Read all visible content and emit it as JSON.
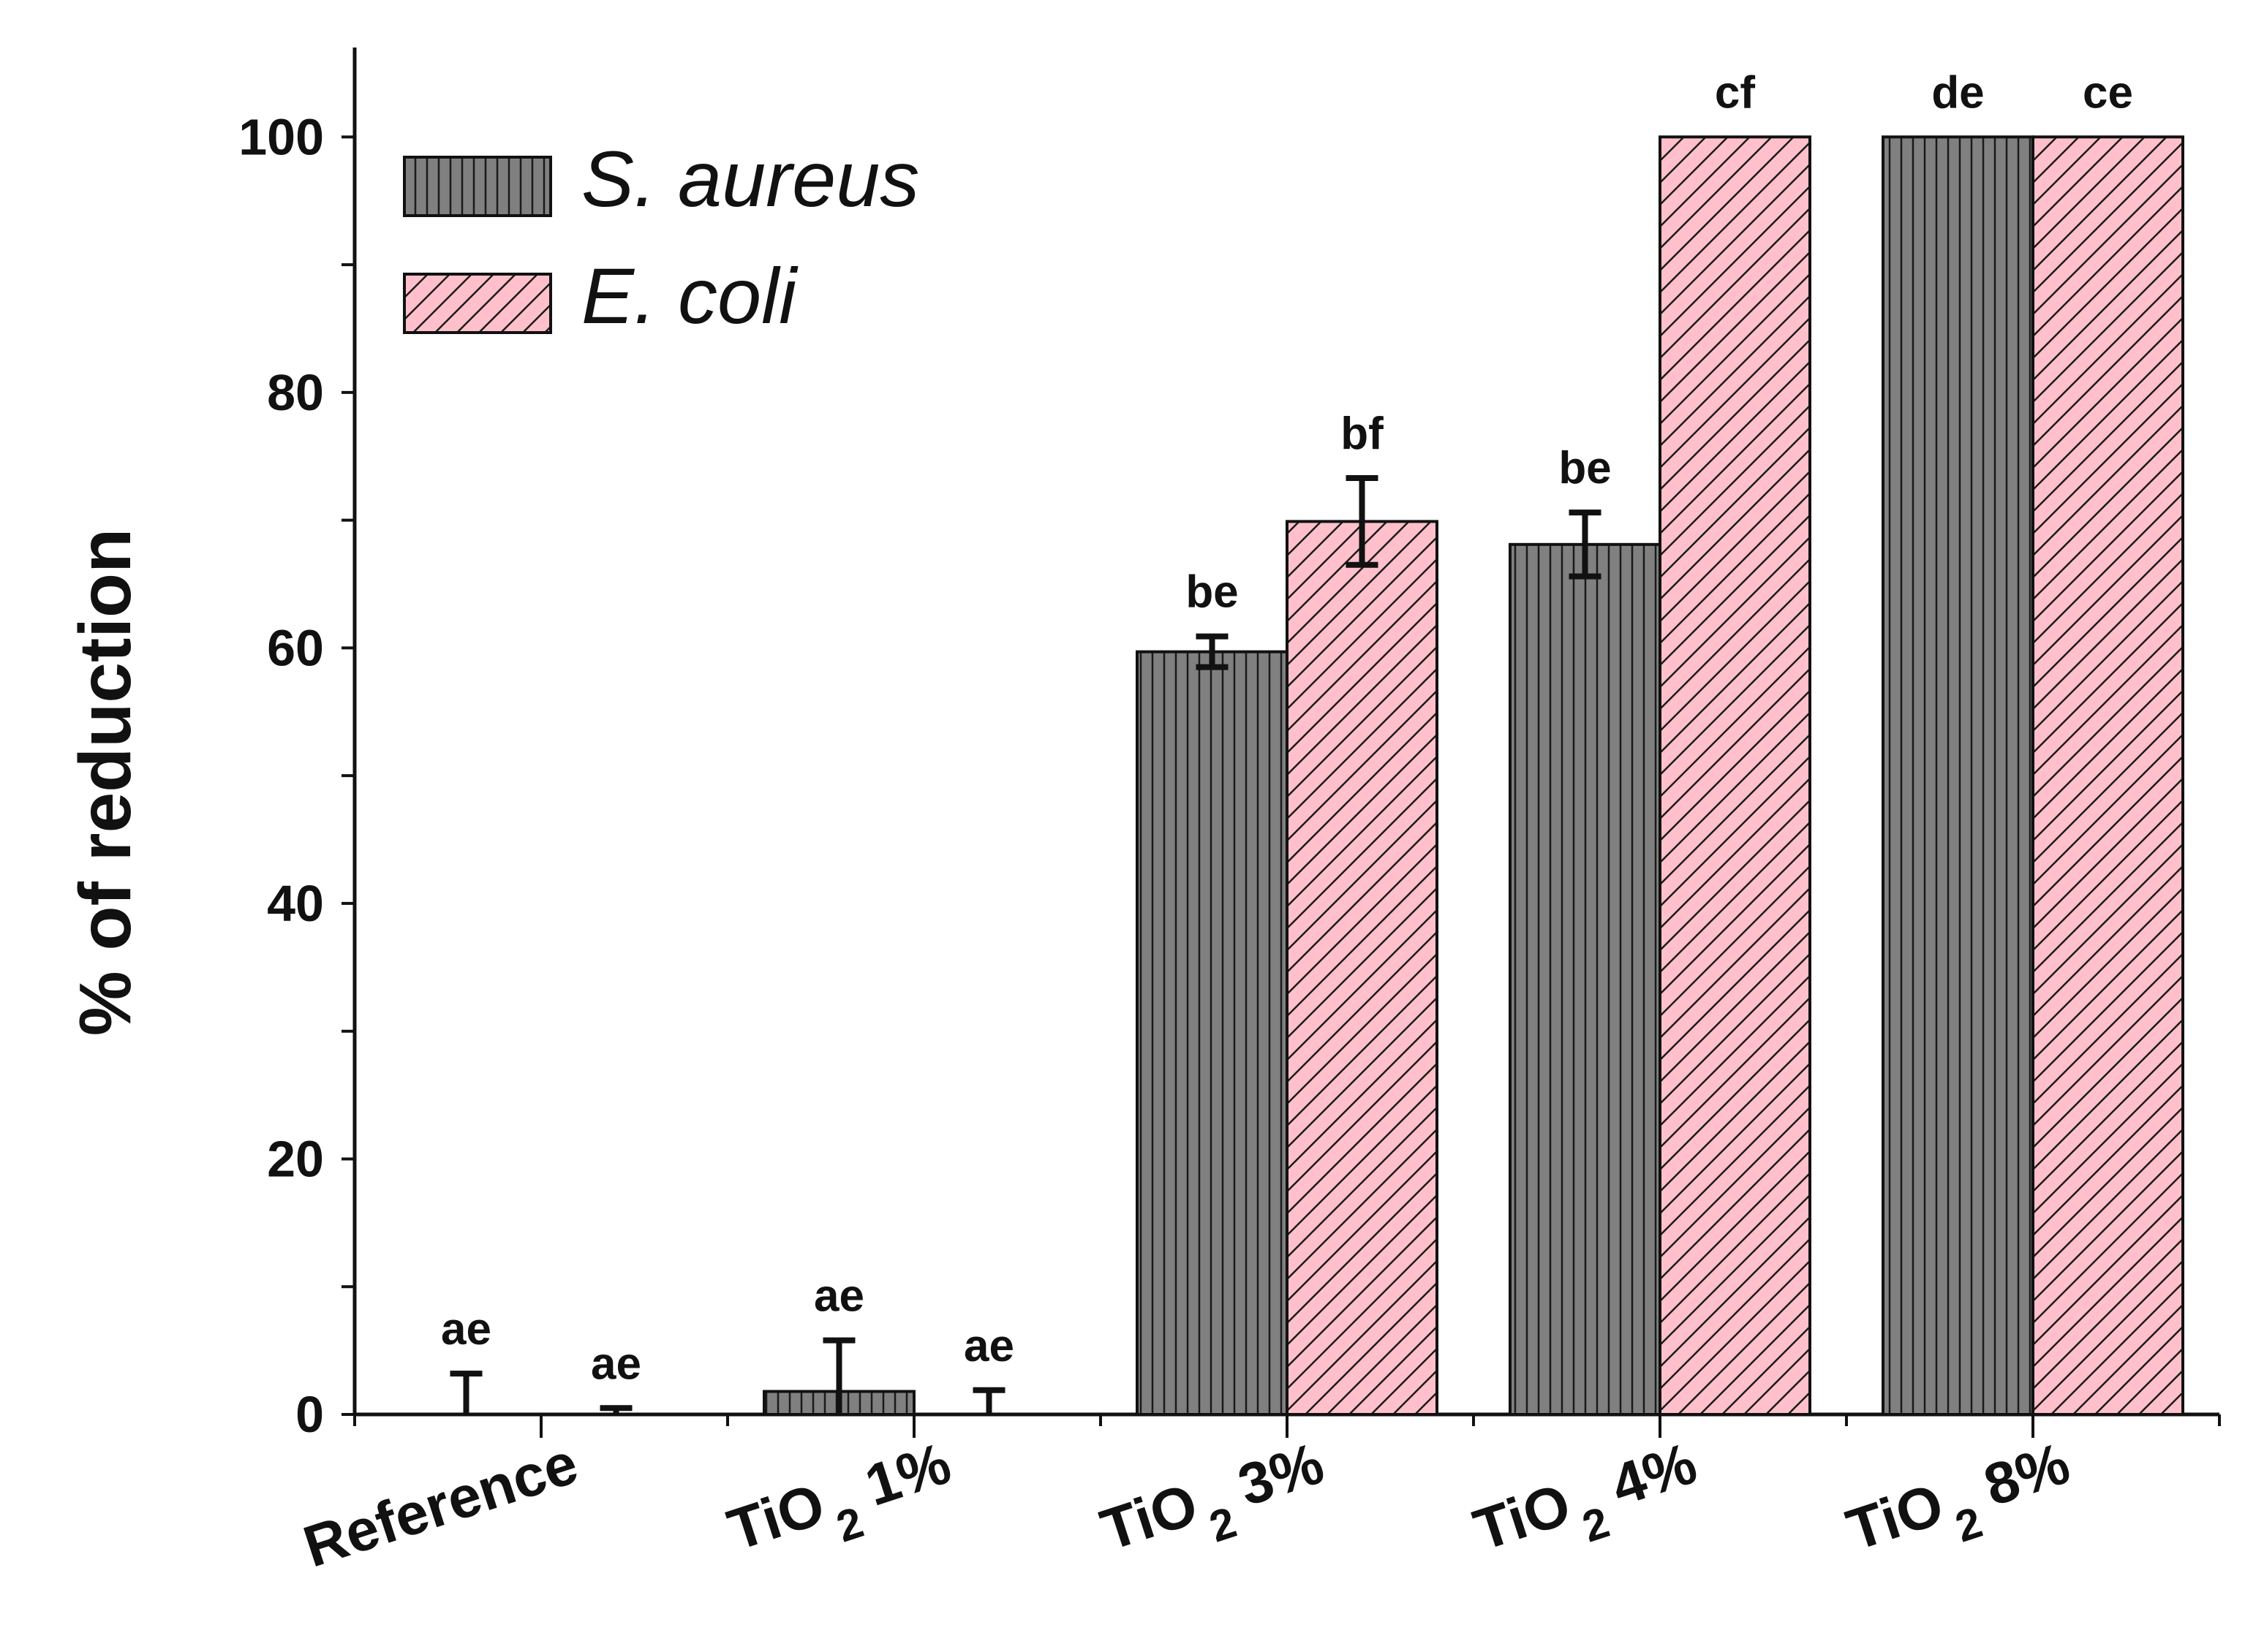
{
  "chart_data": {
    "type": "bar",
    "title": "",
    "xlabel": "",
    "ylabel": "% of reduction",
    "ylim": [
      0,
      107
    ],
    "yticks": [
      0,
      20,
      40,
      60,
      80,
      100
    ],
    "grid": false,
    "legend_position": "top-left",
    "categories": [
      {
        "base": "Reference",
        "sub": "",
        "suffix": ""
      },
      {
        "base": "TiO",
        "sub": "2",
        "suffix": " 1%"
      },
      {
        "base": "TiO",
        "sub": "2",
        "suffix": " 3%"
      },
      {
        "base": "TiO",
        "sub": "2",
        "suffix": " 4%"
      },
      {
        "base": "TiO",
        "sub": "2",
        "suffix": " 8%"
      }
    ],
    "series": [
      {
        "name": "S. aureus",
        "color": "#808080",
        "pattern": "vertical",
        "values": [
          0,
          1.8,
          59.7,
          68.1,
          100
        ],
        "errors": [
          3.2,
          4.0,
          1.2,
          2.5,
          null
        ],
        "labels": [
          "ae",
          "ae",
          "be",
          "be",
          "de"
        ]
      },
      {
        "name": "E. coli",
        "color": "#ffc0cb",
        "pattern": "diagonal",
        "values": [
          0,
          0,
          69.9,
          100,
          100
        ],
        "errors": [
          0.5,
          1.9,
          3.4,
          null,
          null
        ],
        "labels": [
          "ae",
          "ae",
          "bf",
          "cf",
          "ce"
        ]
      }
    ]
  }
}
